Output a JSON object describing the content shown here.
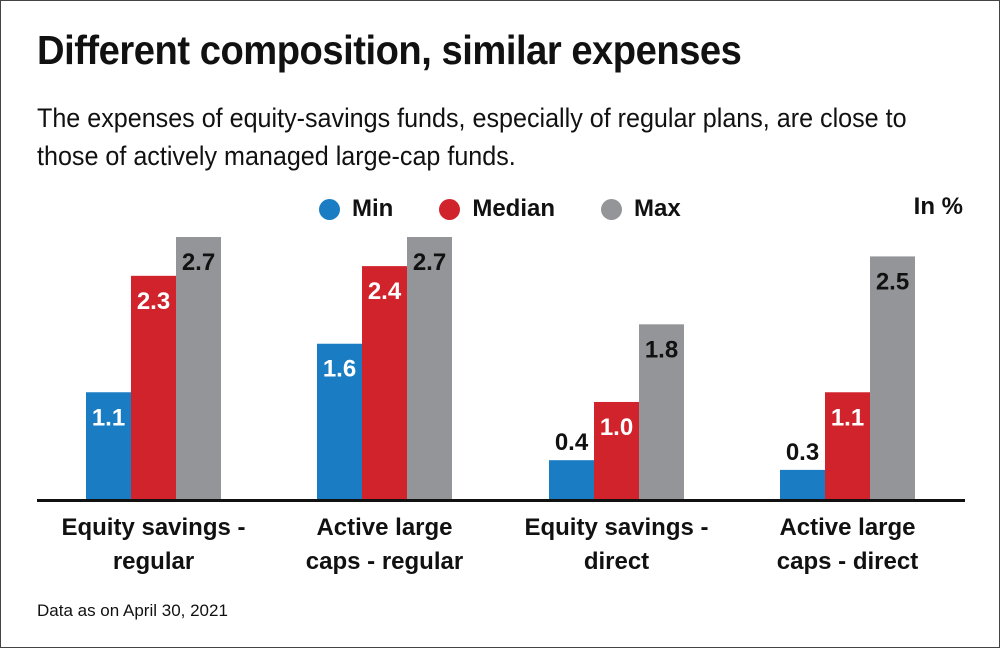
{
  "title": "Different composition, similar expenses",
  "subtitle": "The expenses of equity-savings funds, especially of regular plans, are close to those of actively managed large-cap funds.",
  "unit_label": "In %",
  "footnote": "Data as on April 30, 2021",
  "colors": {
    "min": "#1a7dc4",
    "median": "#d1232b",
    "max": "#939598"
  },
  "chart_data": {
    "type": "bar",
    "title": "Different composition, similar expenses",
    "subtitle": "The expenses of equity-savings funds, especially of regular plans, are close to those of actively managed large-cap funds.",
    "ylabel": "In %",
    "ylim": [
      0,
      2.8
    ],
    "grid": false,
    "legend_position": "top-center",
    "categories": [
      [
        "Equity savings -",
        "regular"
      ],
      [
        "Active large",
        "caps - regular"
      ],
      [
        "Equity savings -",
        "direct"
      ],
      [
        "Active large",
        "caps - direct"
      ]
    ],
    "series": [
      {
        "name": "Min",
        "values": [
          1.1,
          1.6,
          0.4,
          0.3
        ],
        "labels": [
          "1.1",
          "1.6",
          "0.4",
          "0.3"
        ]
      },
      {
        "name": "Median",
        "values": [
          2.3,
          2.4,
          1.0,
          1.1
        ],
        "labels": [
          "2.3",
          "2.4",
          "1.0",
          "1.1"
        ]
      },
      {
        "name": "Max",
        "values": [
          2.7,
          2.7,
          1.8,
          2.5
        ],
        "labels": [
          "2.7",
          "2.7",
          "1.8",
          "2.5"
        ]
      }
    ]
  }
}
